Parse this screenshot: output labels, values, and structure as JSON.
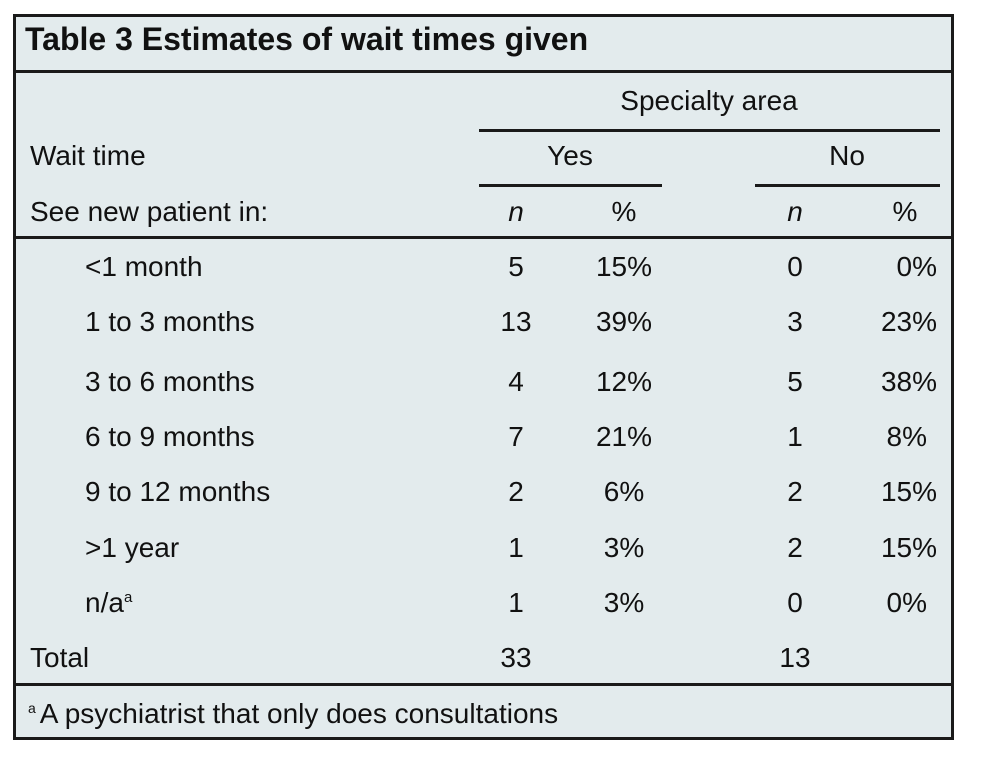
{
  "table": {
    "title": "Table 3  Estimates of wait times given",
    "spanner": "Specialty area",
    "row_header_1": "Wait time",
    "row_header_2": "See new patient in:",
    "group_yes": "Yes",
    "group_no": "No",
    "col_n": "n",
    "col_pct": "%",
    "rows": [
      {
        "label": "<1 month",
        "marker": "",
        "yes_n": "5",
        "yes_pct": "15%",
        "no_n": "0",
        "no_pct": "0%"
      },
      {
        "label": "1 to 3 months",
        "marker": "",
        "yes_n": "13",
        "yes_pct": "39%",
        "no_n": "3",
        "no_pct": "23%"
      },
      {
        "label": "3 to 6 months",
        "marker": "",
        "yes_n": "4",
        "yes_pct": "12%",
        "no_n": "5",
        "no_pct": "38%"
      },
      {
        "label": "6 to 9 months",
        "marker": "",
        "yes_n": "7",
        "yes_pct": "21%",
        "no_n": "1",
        "no_pct": "8%"
      },
      {
        "label": "9 to 12 months",
        "marker": "",
        "yes_n": "2",
        "yes_pct": "6%",
        "no_n": "2",
        "no_pct": "15%"
      },
      {
        "label": ">1 year",
        "marker": "",
        "yes_n": "1",
        "yes_pct": "3%",
        "no_n": "2",
        "no_pct": "15%"
      },
      {
        "label": "n/a",
        "marker": "a",
        "yes_n": "1",
        "yes_pct": "3%",
        "no_n": "0",
        "no_pct": "0%"
      }
    ],
    "total": {
      "label": "Total",
      "yes_n": "33",
      "no_n": "13"
    },
    "footnote": {
      "marker": "a",
      "text": "A psychiatrist that only does consultations"
    }
  }
}
